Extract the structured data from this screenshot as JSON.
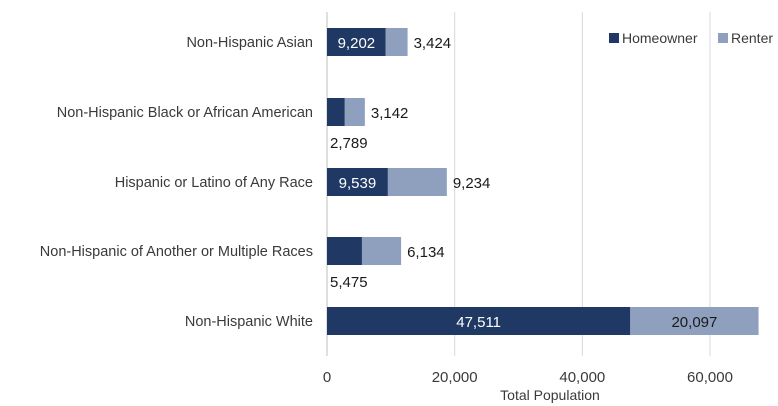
{
  "chart_data": {
    "type": "bar",
    "orientation": "horizontal",
    "stacked": true,
    "categories": [
      "Non-Hispanic Asian",
      "Non-Hispanic Black or African American",
      "Hispanic or Latino of Any Race",
      "Non-Hispanic of Another or Multiple Races",
      "Non-Hispanic White"
    ],
    "series": [
      {
        "name": "Homeowner",
        "color": "#203864",
        "values": [
          9202,
          2789,
          9539,
          5475,
          47511
        ],
        "labels": [
          "9,202",
          "2,789",
          "9,539",
          "5,475",
          "47,511"
        ]
      },
      {
        "name": "Renter",
        "color": "#8EA0BE",
        "values": [
          3424,
          3142,
          9234,
          6134,
          20097
        ],
        "labels": [
          "3,424",
          "3,142",
          "9,234",
          "6,134",
          "20,097"
        ]
      }
    ],
    "xlabel": "Total Population",
    "xlim": [
      0,
      70000
    ],
    "xticks": [
      0,
      20000,
      40000,
      60000
    ],
    "xtick_labels": [
      "0",
      "20,000",
      "40,000",
      "60,000"
    ],
    "grid": true,
    "legend_position": "top-right"
  }
}
